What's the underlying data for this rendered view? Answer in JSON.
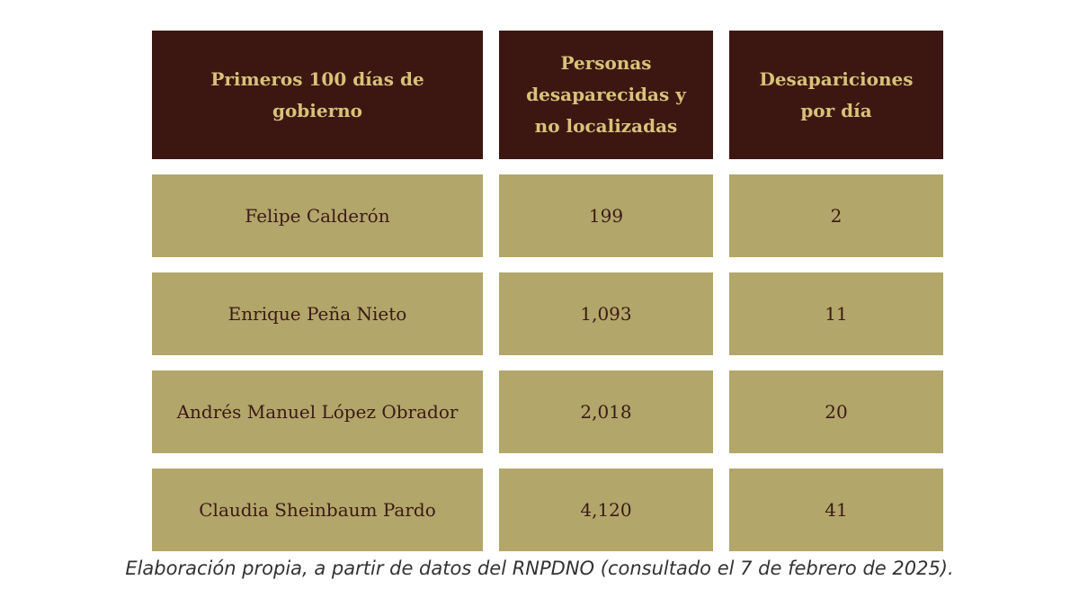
{
  "table": {
    "headers": [
      "Primeros 100 días de gobierno",
      "Personas desaparecidas y no localizadas",
      "Desapariciones por día"
    ],
    "rows": [
      [
        "Felipe Calderón",
        "199",
        "2"
      ],
      [
        "Enrique Peña Nieto",
        "1,093",
        "11"
      ],
      [
        "Andrés Manuel López Obrador",
        "2,018",
        "20"
      ],
      [
        "Claudia Sheinbaum Pardo",
        "4,120",
        "41"
      ]
    ]
  },
  "caption": "Elaboración propia, a partir de datos del RNPDNO (consultado el 7 de febrero de 2025).",
  "colors": {
    "header_bg": "#3c1712",
    "header_text": "#d8c27a",
    "row_bg": "#b2a66a",
    "row_text": "#3b1a14"
  }
}
